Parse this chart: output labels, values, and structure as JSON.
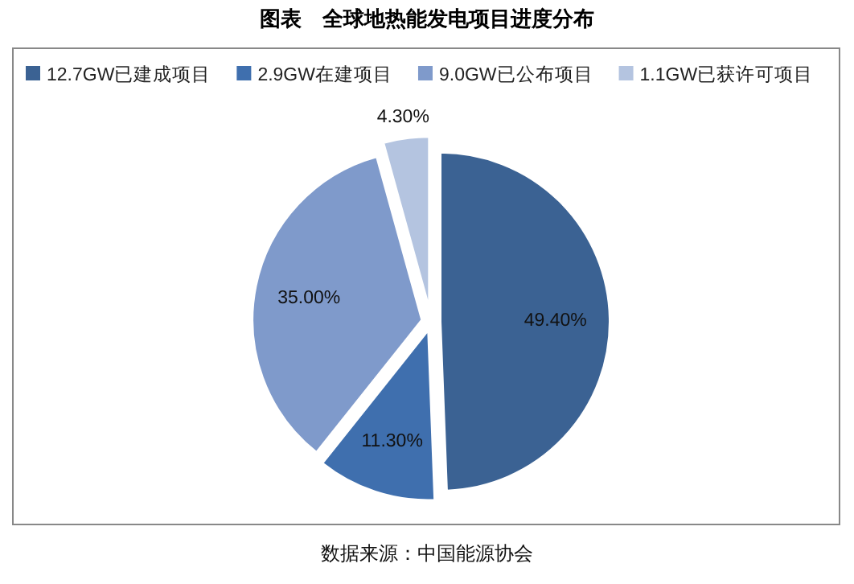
{
  "chart_data": {
    "type": "pie",
    "title": "图表　全球地热能发电项目进度分布",
    "categories": [
      "12.7GW已建成项目",
      "2.9GW在建项目",
      "9.0GW已公布项目",
      "1.1GW已获许可项目"
    ],
    "values": [
      49.4,
      11.3,
      35.0,
      4.3
    ],
    "value_labels": [
      "49.40%",
      "11.30%",
      "35.00%",
      "4.30%"
    ],
    "colors": [
      "#3b6293",
      "#3f6fae",
      "#7f9acb",
      "#b4c4e0"
    ],
    "legend": "top left",
    "annotations": [
      "数据来源：中国能源协会"
    ]
  }
}
